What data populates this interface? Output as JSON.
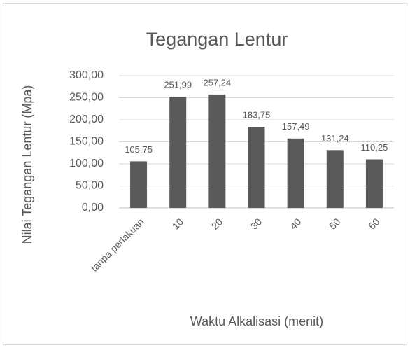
{
  "chart_data": {
    "type": "bar",
    "title": "Tegangan Lentur",
    "x_label": "Waktu Alkalisasi (menit)",
    "y_label": "Nilai Tegangan Lentur (Mpa)",
    "categories": [
      "tanpa perlakuan",
      "10",
      "20",
      "30",
      "40",
      "50",
      "60"
    ],
    "values": [
      105.75,
      251.99,
      257.24,
      183.75,
      157.49,
      131.24,
      110.25
    ],
    "value_labels": [
      "105,75",
      "251,99",
      "257,24",
      "183,75",
      "157,49",
      "131,24",
      "110,25"
    ],
    "color": "#595959",
    "ylim": [
      0,
      300
    ],
    "yticks": [
      {
        "value": 0,
        "label": "0,00"
      },
      {
        "value": 50,
        "label": "50,00"
      },
      {
        "value": 100,
        "label": "100,00"
      },
      {
        "value": 150,
        "label": "150,00"
      },
      {
        "value": 200,
        "label": "200,00"
      },
      {
        "value": 250,
        "label": "250,00"
      },
      {
        "value": 300,
        "label": "300,00"
      }
    ],
    "grid": true
  }
}
